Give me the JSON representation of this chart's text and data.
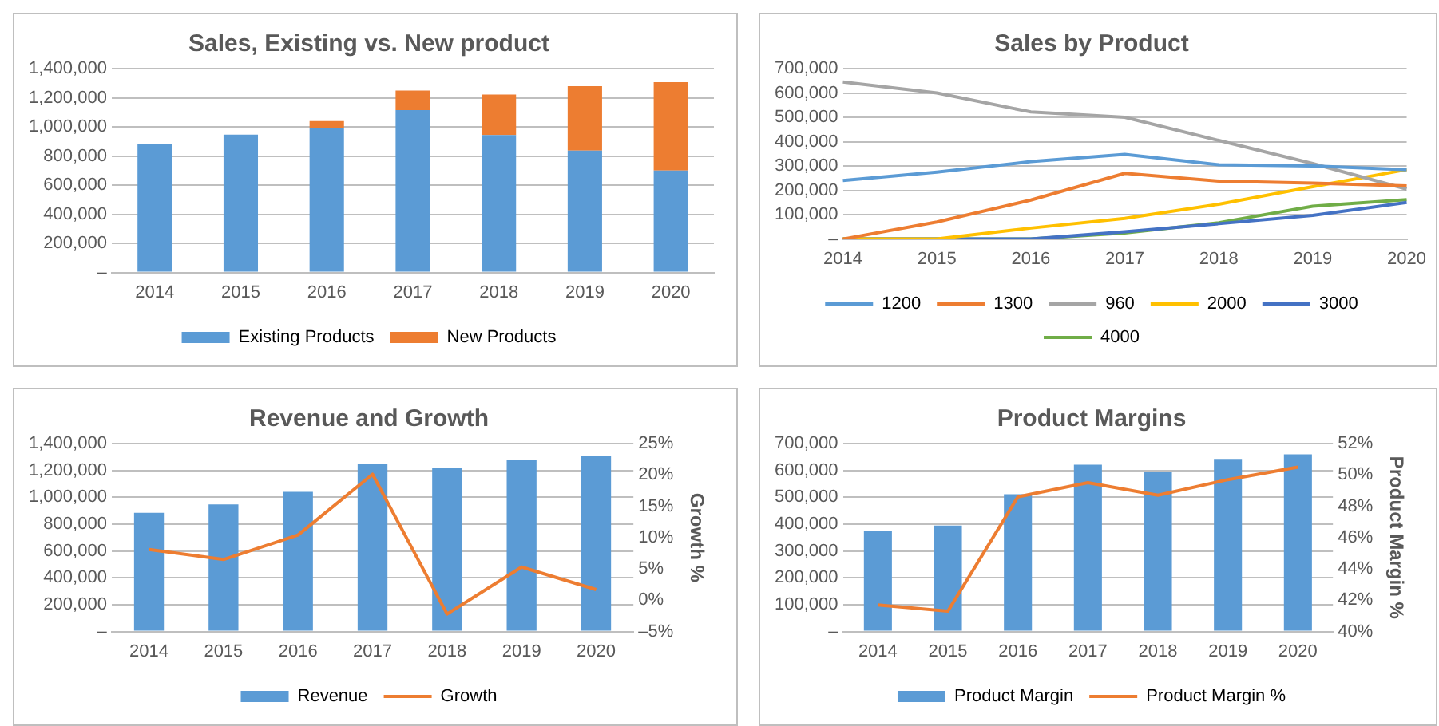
{
  "chart_data": [
    {
      "type": "bar",
      "title": "Sales, Existing vs. New product",
      "categories": [
        "2014",
        "2015",
        "2016",
        "2017",
        "2018",
        "2019",
        "2020"
      ],
      "stacked": true,
      "grid": "y",
      "legend": "bottom",
      "ylim": [
        0,
        1400000
      ],
      "yticks": [
        {
          "value": 0,
          "label": "–"
        },
        {
          "value": 200000,
          "label": "200,000"
        },
        {
          "value": 400000,
          "label": "400,000"
        },
        {
          "value": 600000,
          "label": "600,000"
        },
        {
          "value": 800000,
          "label": "800,000"
        },
        {
          "value": 1000000,
          "label": "1,000,000"
        },
        {
          "value": 1200000,
          "label": "1,200,000"
        },
        {
          "value": 1400000,
          "label": "1,400,000"
        }
      ],
      "series": [
        {
          "name": "Existing Products",
          "color": "#5b9bd5",
          "values": [
            885000,
            947000,
            995000,
            1115000,
            944000,
            837000,
            700000
          ]
        },
        {
          "name": "New Products",
          "color": "#ed7d31",
          "values": [
            0,
            0,
            45000,
            134000,
            278000,
            443000,
            607000
          ]
        }
      ]
    },
    {
      "type": "line",
      "title": "Sales by Product",
      "categories": [
        "2014",
        "2015",
        "2016",
        "2017",
        "2018",
        "2019",
        "2020"
      ],
      "grid": "y",
      "legend": "bottom",
      "marker": "none",
      "ylim": [
        0,
        700000
      ],
      "yticks": [
        {
          "value": 0,
          "label": "–"
        },
        {
          "value": 100000,
          "label": "100,000"
        },
        {
          "value": 200000,
          "label": "200,000"
        },
        {
          "value": 300000,
          "label": "300,000"
        },
        {
          "value": 400000,
          "label": "400,000"
        },
        {
          "value": 500000,
          "label": "500,000"
        },
        {
          "value": 600000,
          "label": "600,000"
        },
        {
          "value": 700000,
          "label": "700,000"
        }
      ],
      "series": [
        {
          "name": "1200",
          "color": "#5b9bd5",
          "values": [
            240000,
            275000,
            318000,
            348000,
            305000,
            300000,
            285000
          ]
        },
        {
          "name": "1300",
          "color": "#ed7d31",
          "values": [
            0,
            70000,
            160000,
            270000,
            238000,
            230000,
            218000
          ]
        },
        {
          "name": "960",
          "color": "#a5a5a5",
          "values": [
            645000,
            600000,
            522000,
            500000,
            405000,
            310000,
            205000
          ]
        },
        {
          "name": "2000",
          "color": "#ffc000",
          "values": [
            0,
            0,
            45000,
            85000,
            143000,
            215000,
            285000
          ]
        },
        {
          "name": "3000",
          "color": "#4472c4",
          "values": [
            0,
            0,
            0,
            30000,
            63000,
            97000,
            150000
          ]
        },
        {
          "name": "4000",
          "color": "#70ad47",
          "values": [
            0,
            0,
            0,
            25000,
            67000,
            135000,
            162000
          ]
        }
      ]
    },
    {
      "type": "bar",
      "title": "Revenue and Growth",
      "categories": [
        "2014",
        "2015",
        "2016",
        "2017",
        "2018",
        "2019",
        "2020"
      ],
      "grid": "y",
      "legend": "bottom",
      "marker": "none",
      "y2label": "Growth %",
      "ylim": [
        0,
        1400000
      ],
      "yticks": [
        {
          "value": 0,
          "label": "–"
        },
        {
          "value": 200000,
          "label": "200,000"
        },
        {
          "value": 400000,
          "label": "400,000"
        },
        {
          "value": 600000,
          "label": "600,000"
        },
        {
          "value": 800000,
          "label": "800,000"
        },
        {
          "value": 1000000,
          "label": "1,000,000"
        },
        {
          "value": 1200000,
          "label": "1,200,000"
        },
        {
          "value": 1400000,
          "label": "1,400,000"
        }
      ],
      "y2lim": [
        -5,
        25
      ],
      "y2ticks": [
        {
          "value": -5,
          "label": "–5%"
        },
        {
          "value": 0,
          "label": "0%"
        },
        {
          "value": 5,
          "label": "5%"
        },
        {
          "value": 10,
          "label": "10%"
        },
        {
          "value": 15,
          "label": "15%"
        },
        {
          "value": 20,
          "label": "20%"
        },
        {
          "value": 25,
          "label": "25%"
        }
      ],
      "series": [
        {
          "name": "Revenue",
          "color": "#5b9bd5",
          "values": [
            885000,
            947000,
            1040000,
            1249000,
            1222000,
            1280000,
            1307000
          ]
        },
        {
          "name": "Growth",
          "type": "line",
          "axis": "y2",
          "color": "#ed7d31",
          "values": [
            8.1,
            6.5,
            10.4,
            20.1,
            -2.2,
            5.3,
            1.7
          ]
        }
      ]
    },
    {
      "type": "bar",
      "title": "Product Margins",
      "categories": [
        "2014",
        "2015",
        "2016",
        "2017",
        "2018",
        "2019",
        "2020"
      ],
      "grid": "y",
      "legend": "bottom",
      "marker": "none",
      "y2label": "Product Margin %",
      "ylim": [
        0,
        700000
      ],
      "yticks": [
        {
          "value": 0,
          "label": "–"
        },
        {
          "value": 100000,
          "label": "100,000"
        },
        {
          "value": 200000,
          "label": "200,000"
        },
        {
          "value": 300000,
          "label": "300,000"
        },
        {
          "value": 400000,
          "label": "400,000"
        },
        {
          "value": 500000,
          "label": "500,000"
        },
        {
          "value": 600000,
          "label": "600,000"
        },
        {
          "value": 700000,
          "label": "700,000"
        }
      ],
      "y2lim": [
        40,
        52
      ],
      "y2ticks": [
        {
          "value": 40,
          "label": "40%"
        },
        {
          "value": 42,
          "label": "42%"
        },
        {
          "value": 44,
          "label": "44%"
        },
        {
          "value": 46,
          "label": "46%"
        },
        {
          "value": 48,
          "label": "48%"
        },
        {
          "value": 50,
          "label": "50%"
        },
        {
          "value": 52,
          "label": "52%"
        }
      ],
      "series": [
        {
          "name": "Product Margin",
          "color": "#5b9bd5",
          "values": [
            373000,
            395000,
            511000,
            621000,
            594000,
            643000,
            660000
          ]
        },
        {
          "name": "Product Margin %",
          "type": "line",
          "axis": "y2",
          "color": "#ed7d31",
          "values": [
            41.7,
            41.3,
            48.6,
            49.5,
            48.7,
            49.7,
            50.5
          ]
        }
      ]
    }
  ]
}
